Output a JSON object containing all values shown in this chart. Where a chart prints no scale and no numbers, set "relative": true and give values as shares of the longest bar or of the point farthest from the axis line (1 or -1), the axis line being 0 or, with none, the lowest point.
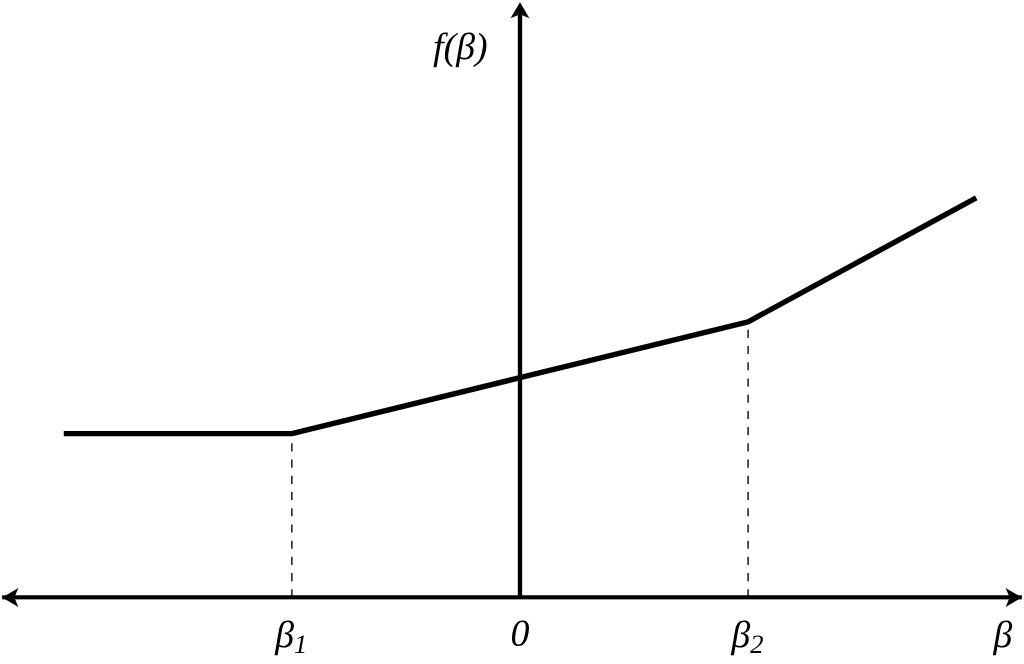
{
  "chart_data": {
    "type": "line",
    "relative": true,
    "xlabel": "β",
    "ylabel": "f(β)",
    "categories": [
      null,
      "β$_{1}$",
      "0",
      "β$_{2}$",
      null
    ],
    "values": [
      0.41,
      0.41,
      0.55,
      0.69,
      1
    ],
    "color": "#000000",
    "marker": "none",
    "line_style": "solid",
    "ref_lines": [
      {
        "axis": "x",
        "value": "β$_{1}$",
        "line_style": "dashed"
      },
      {
        "axis": "x",
        "value": "β$_{2}$",
        "line_style": "dashed"
      }
    ]
  }
}
